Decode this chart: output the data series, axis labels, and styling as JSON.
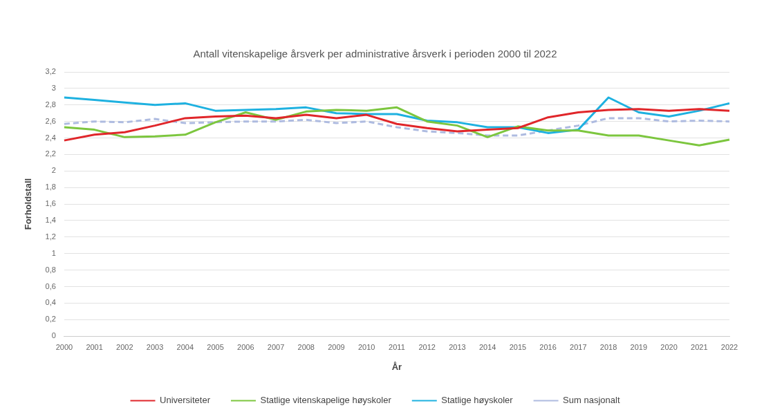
{
  "chart_data": {
    "type": "line",
    "title": "Antall vitenskapelige årsverk per administrative årsverk i perioden 2000 til 2022",
    "xlabel": "År",
    "ylabel": "Forholdstall",
    "categories": [
      "2000",
      "2001",
      "2002",
      "2003",
      "2004",
      "2005",
      "2006",
      "2007",
      "2008",
      "2009",
      "2010",
      "2011",
      "2012",
      "2013",
      "2014",
      "2015",
      "2016",
      "2017",
      "2018",
      "2019",
      "2020",
      "2021",
      "2022"
    ],
    "series": [
      {
        "name": "Universiteter",
        "color": "#e0262a",
        "values": [
          2.37,
          2.44,
          2.47,
          2.55,
          2.64,
          2.66,
          2.67,
          2.64,
          2.68,
          2.64,
          2.68,
          2.57,
          2.52,
          2.48,
          2.5,
          2.52,
          2.65,
          2.71,
          2.74,
          2.75,
          2.73,
          2.75,
          2.73
        ]
      },
      {
        "name": "Statlige vitenskapelige høyskoler",
        "color": "#7cc63e",
        "values": [
          2.53,
          2.5,
          2.41,
          2.42,
          2.44,
          2.59,
          2.71,
          2.62,
          2.72,
          2.74,
          2.73,
          2.77,
          2.6,
          2.55,
          2.41,
          2.54,
          2.49,
          2.49,
          2.43,
          2.43,
          2.37,
          2.31,
          2.38
        ]
      },
      {
        "name": "Statlige høyskoler",
        "color": "#1eb1e0",
        "values": [
          2.89,
          2.86,
          2.83,
          2.8,
          2.82,
          2.73,
          2.74,
          2.75,
          2.77,
          2.7,
          2.69,
          2.69,
          2.61,
          2.59,
          2.53,
          2.53,
          2.46,
          2.5,
          2.89,
          2.71,
          2.66,
          2.73,
          2.82
        ]
      },
      {
        "name": "Sum nasjonalt",
        "color": "#aebbe0",
        "line_style": "dashed",
        "values": [
          2.57,
          2.6,
          2.59,
          2.63,
          2.58,
          2.59,
          2.6,
          2.6,
          2.62,
          2.58,
          2.6,
          2.53,
          2.48,
          2.46,
          2.43,
          2.43,
          2.49,
          2.55,
          2.64,
          2.64,
          2.6,
          2.61,
          2.6
        ]
      }
    ],
    "ylim": [
      0,
      3.2
    ],
    "yticks": [
      0,
      {
        "value": 0.2,
        "label": "0,2"
      },
      {
        "value": 0.4,
        "label": "0,4"
      },
      {
        "value": 0.6,
        "label": "0,6"
      },
      {
        "value": 0.8,
        "label": "0,8"
      },
      1,
      {
        "value": 1.2,
        "label": "1,2"
      },
      {
        "value": 1.4,
        "label": "1,4"
      },
      {
        "value": 1.6,
        "label": "1,6"
      },
      {
        "value": 1.8,
        "label": "1,8"
      },
      2,
      {
        "value": 2.2,
        "label": "2,2"
      },
      {
        "value": 2.4,
        "label": "2,4"
      },
      {
        "value": 2.6,
        "label": "2,6"
      },
      {
        "value": 2.8,
        "label": "2,8"
      },
      3,
      {
        "value": 3.2,
        "label": "3,2"
      }
    ],
    "grid": "y",
    "legend": "bottom",
    "marker": "none",
    "line_style": "solid"
  }
}
